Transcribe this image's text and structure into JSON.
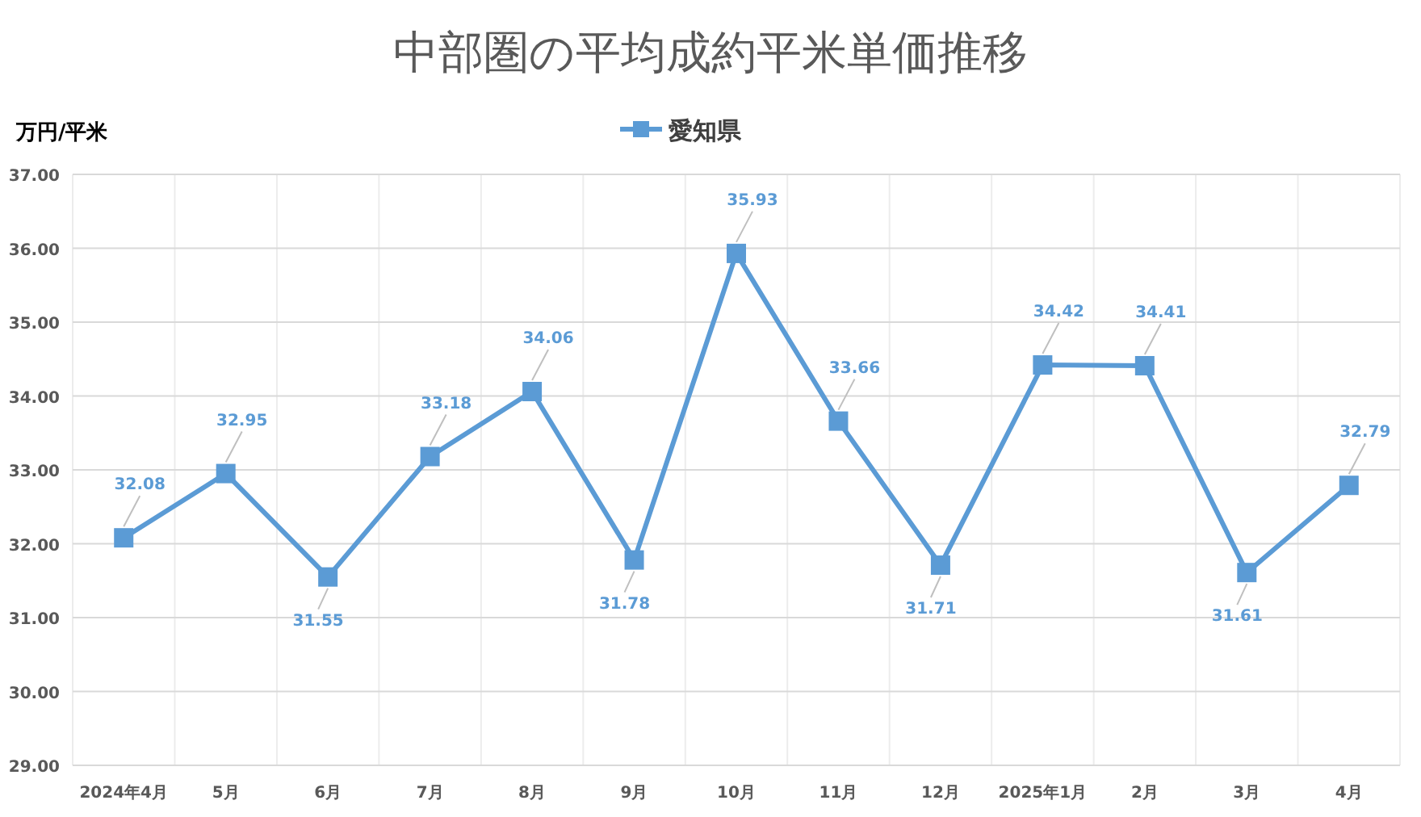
{
  "chart_data": {
    "type": "line",
    "title": "中部圏の平均成約平米単価推移",
    "ylabel": "万円/平米",
    "categories": [
      "2024年4月",
      "5月",
      "6月",
      "7月",
      "8月",
      "9月",
      "10月",
      "11月",
      "12月",
      "2025年1月",
      "2月",
      "3月",
      "4月"
    ],
    "series": [
      {
        "name": "愛知県",
        "color": "#5b9bd5",
        "values": [
          32.08,
          32.95,
          31.55,
          33.18,
          34.06,
          31.78,
          35.93,
          33.66,
          31.71,
          34.42,
          34.41,
          31.61,
          32.79
        ]
      }
    ],
    "ylim": [
      29,
      37
    ],
    "yticks": [
      {
        "value": 29,
        "label": "29.00"
      },
      {
        "value": 30,
        "label": "30.00"
      },
      {
        "value": 31,
        "label": "31.00"
      },
      {
        "value": 32,
        "label": "32.00"
      },
      {
        "value": 33,
        "label": "33.00"
      },
      {
        "value": 34,
        "label": "34.00"
      },
      {
        "value": 35,
        "label": "35.00"
      },
      {
        "value": 36,
        "label": "36.00"
      },
      {
        "value": 37,
        "label": "37.00"
      }
    ],
    "grid": true,
    "legend": "top",
    "marker": "square",
    "line_style": "solid",
    "data_labels": true
  }
}
